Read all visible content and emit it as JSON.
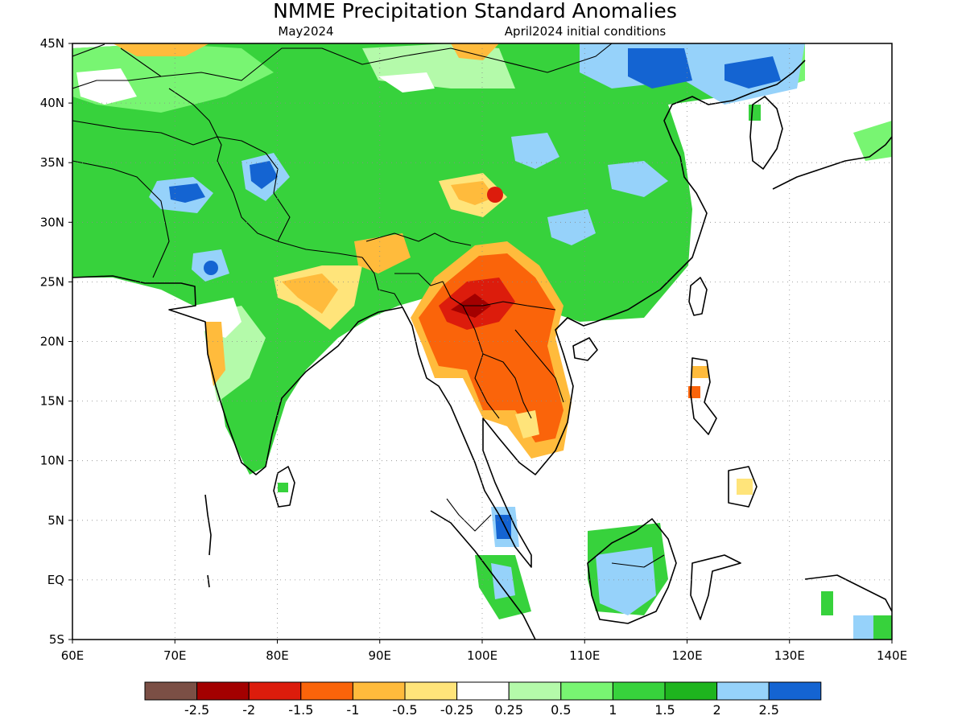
{
  "title": "NMME Precipitation Standard Anomalies",
  "subtitle_left": "May2024",
  "subtitle_right": "April2024 initial conditions",
  "map": {
    "lon_range": [
      60,
      140
    ],
    "lat_range": [
      -5,
      45
    ],
    "lon_ticks": [
      {
        "value": 60,
        "label": "60E"
      },
      {
        "value": 70,
        "label": "70E"
      },
      {
        "value": 80,
        "label": "80E"
      },
      {
        "value": 90,
        "label": "90E"
      },
      {
        "value": 100,
        "label": "100E"
      },
      {
        "value": 110,
        "label": "110E"
      },
      {
        "value": 120,
        "label": "120E"
      },
      {
        "value": 130,
        "label": "130E"
      },
      {
        "value": 140,
        "label": "140E"
      }
    ],
    "lat_ticks": [
      {
        "value": 45,
        "label": "45N"
      },
      {
        "value": 40,
        "label": "40N"
      },
      {
        "value": 35,
        "label": "35N"
      },
      {
        "value": 30,
        "label": "30N"
      },
      {
        "value": 25,
        "label": "25N"
      },
      {
        "value": 20,
        "label": "20N"
      },
      {
        "value": 15,
        "label": "15N"
      },
      {
        "value": 10,
        "label": "10N"
      },
      {
        "value": 5,
        "label": "5N"
      },
      {
        "value": 0,
        "label": "EQ"
      },
      {
        "value": -5,
        "label": "5S"
      }
    ],
    "grid": true
  },
  "colorbar": {
    "colors": [
      "#7b4f45",
      "#a30000",
      "#dc1c0c",
      "#fa640a",
      "#ffbb3c",
      "#ffe47a",
      "#ffffff",
      "#b4faaa",
      "#78f572",
      "#37d23c",
      "#1eb41e",
      "#96d2fa",
      "#1464d2"
    ],
    "labels": [
      "-2.5",
      "-2",
      "-1.5",
      "-1",
      "-0.5",
      "-0.25",
      "0.25",
      "0.5",
      "1",
      "1.5",
      "2",
      "2.5"
    ]
  }
}
